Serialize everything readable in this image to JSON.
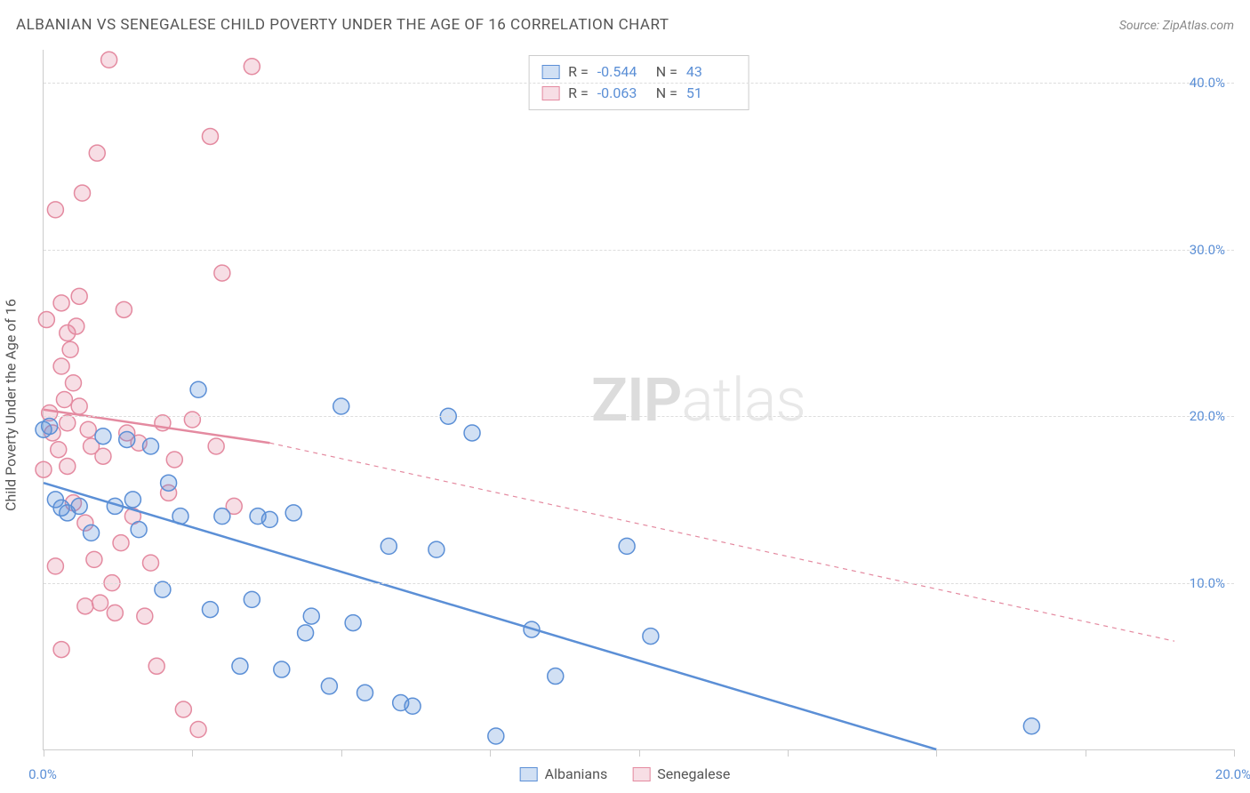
{
  "title": "ALBANIAN VS SENEGALESE CHILD POVERTY UNDER THE AGE OF 16 CORRELATION CHART",
  "source_label": "Source: ZipAtlas.com",
  "y_axis_label": "Child Poverty Under the Age of 16",
  "watermark_a": "ZIP",
  "watermark_b": "atlas",
  "chart": {
    "type": "scatter",
    "xlim": [
      0,
      20
    ],
    "ylim": [
      0,
      42
    ],
    "x_ticks": [
      0,
      2.5,
      5,
      7.5,
      10,
      12.5,
      15,
      17.5,
      20
    ],
    "x_tick_labels_shown": {
      "0": "0.0%",
      "20": "20.0%"
    },
    "y_ticks": [
      10,
      20,
      30,
      40
    ],
    "y_tick_labels": [
      "10.0%",
      "20.0%",
      "30.0%",
      "40.0%"
    ],
    "grid_color": "#dddddd",
    "axis_color": "#cccccc",
    "background_color": "#ffffff",
    "marker_radius": 9,
    "marker_stroke_width": 1.5,
    "marker_fill_opacity": 0.28,
    "trend_line_width": 2.5,
    "series": {
      "albanians": {
        "label": "Albanians",
        "color_stroke": "#5b8fd6",
        "color_fill": "#5b8fd6",
        "R": "-0.544",
        "N": "43",
        "trend": {
          "x1": 0,
          "y1": 16.0,
          "x2": 15.0,
          "y2": 0.0,
          "dash_x2": 15.0,
          "dash_y2": 0.0
        },
        "points": [
          [
            0.1,
            19.4
          ],
          [
            0.2,
            15.0
          ],
          [
            0.3,
            14.5
          ],
          [
            0.4,
            14.2
          ],
          [
            0.6,
            14.6
          ],
          [
            0.8,
            13.0
          ],
          [
            1.0,
            18.8
          ],
          [
            1.2,
            14.6
          ],
          [
            1.4,
            18.6
          ],
          [
            1.5,
            15.0
          ],
          [
            1.6,
            13.2
          ],
          [
            1.8,
            18.2
          ],
          [
            2.0,
            9.6
          ],
          [
            2.1,
            16.0
          ],
          [
            2.3,
            14.0
          ],
          [
            2.6,
            21.6
          ],
          [
            2.8,
            8.4
          ],
          [
            3.0,
            14.0
          ],
          [
            3.3,
            5.0
          ],
          [
            3.5,
            9.0
          ],
          [
            3.6,
            14.0
          ],
          [
            3.8,
            13.8
          ],
          [
            4.0,
            4.8
          ],
          [
            4.2,
            14.2
          ],
          [
            4.4,
            7.0
          ],
          [
            4.5,
            8.0
          ],
          [
            4.8,
            3.8
          ],
          [
            5.0,
            20.6
          ],
          [
            5.2,
            7.6
          ],
          [
            5.4,
            3.4
          ],
          [
            5.8,
            12.2
          ],
          [
            6.0,
            2.8
          ],
          [
            6.2,
            2.6
          ],
          [
            6.6,
            12.0
          ],
          [
            6.8,
            20.0
          ],
          [
            7.2,
            19.0
          ],
          [
            7.6,
            0.8
          ],
          [
            8.2,
            7.2
          ],
          [
            8.6,
            4.4
          ],
          [
            9.8,
            12.2
          ],
          [
            10.2,
            6.8
          ],
          [
            16.6,
            1.4
          ],
          [
            0.0,
            19.2
          ]
        ]
      },
      "senegalese": {
        "label": "Senegalese",
        "color_stroke": "#e48aa0",
        "color_fill": "#e48aa0",
        "R": "-0.063",
        "N": "51",
        "trend": {
          "x1": 0,
          "y1": 20.4,
          "x2": 3.8,
          "y2": 18.4,
          "dash_x2": 19.0,
          "dash_y2": 6.5
        },
        "points": [
          [
            0.0,
            16.8
          ],
          [
            0.05,
            25.8
          ],
          [
            0.1,
            20.2
          ],
          [
            0.15,
            19.0
          ],
          [
            0.2,
            32.4
          ],
          [
            0.2,
            11.0
          ],
          [
            0.25,
            18.0
          ],
          [
            0.3,
            26.8
          ],
          [
            0.3,
            23.0
          ],
          [
            0.35,
            21.0
          ],
          [
            0.4,
            25.0
          ],
          [
            0.4,
            17.0
          ],
          [
            0.45,
            24.0
          ],
          [
            0.5,
            22.0
          ],
          [
            0.5,
            14.8
          ],
          [
            0.55,
            25.4
          ],
          [
            0.6,
            27.2
          ],
          [
            0.6,
            20.6
          ],
          [
            0.65,
            33.4
          ],
          [
            0.7,
            13.6
          ],
          [
            0.7,
            8.6
          ],
          [
            0.75,
            19.2
          ],
          [
            0.8,
            18.2
          ],
          [
            0.85,
            11.4
          ],
          [
            0.9,
            35.8
          ],
          [
            0.95,
            8.8
          ],
          [
            1.0,
            17.6
          ],
          [
            1.1,
            41.4
          ],
          [
            1.15,
            10.0
          ],
          [
            1.2,
            8.2
          ],
          [
            1.3,
            12.4
          ],
          [
            1.35,
            26.4
          ],
          [
            1.4,
            19.0
          ],
          [
            1.5,
            14.0
          ],
          [
            1.6,
            18.4
          ],
          [
            1.7,
            8.0
          ],
          [
            1.8,
            11.2
          ],
          [
            1.9,
            5.0
          ],
          [
            2.0,
            19.6
          ],
          [
            2.1,
            15.4
          ],
          [
            2.2,
            17.4
          ],
          [
            2.35,
            2.4
          ],
          [
            2.5,
            19.8
          ],
          [
            2.6,
            1.2
          ],
          [
            2.8,
            36.8
          ],
          [
            2.9,
            18.2
          ],
          [
            3.0,
            28.6
          ],
          [
            3.2,
            14.6
          ],
          [
            3.5,
            41.0
          ],
          [
            0.3,
            6.0
          ],
          [
            0.4,
            19.6
          ]
        ]
      }
    },
    "legend_labels": {
      "R": "R =",
      "N": "N ="
    }
  },
  "title_fontsize": 17,
  "tick_fontsize": 15,
  "axis_label_fontsize": 16
}
